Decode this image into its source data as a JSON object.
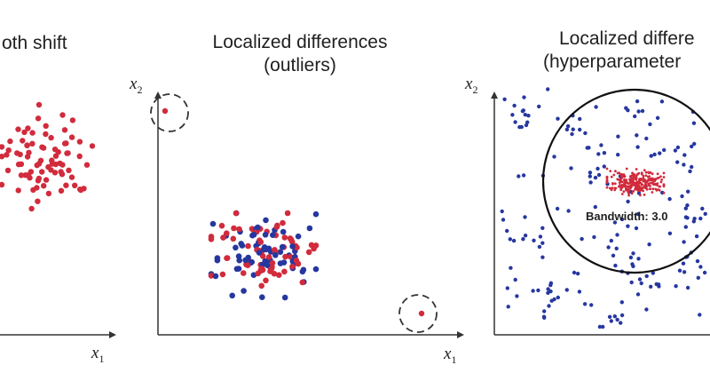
{
  "colors": {
    "red": "#d12b3c",
    "blue": "#2637a0",
    "axis": "#333333",
    "text": "#1f1f1f"
  },
  "panels": [
    {
      "title_lines": [
        "oth shift"
      ],
      "x_label": "x",
      "x_label_sub": "1"
    },
    {
      "title_lines": [
        "Localized differences",
        "(outliers)"
      ],
      "x_label": "x",
      "x_label_sub": "1",
      "y_label": "x",
      "y_label_sub": "2"
    },
    {
      "title_lines": [
        "Localized differe",
        "(hyperparameter"
      ],
      "x_label": "x",
      "x_label_sub": "1",
      "y_label": "x",
      "y_label_sub": "2",
      "annotation": "Bandwidth: 3.0"
    }
  ]
}
